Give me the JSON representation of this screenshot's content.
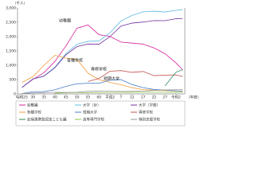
{
  "chart_data": {
    "type": "line",
    "y_unit": "（千人）",
    "x_label": "（年度）",
    "x": [
      1950,
      1955,
      1960,
      1965,
      1970,
      1975,
      1980,
      1985,
      1990,
      1995,
      2000,
      2005,
      2010,
      2015,
      2020,
      2023
    ],
    "xlim": [
      1948,
      2024
    ],
    "xticks": [
      {
        "value": 1950,
        "label": "昭和25"
      },
      {
        "value": 1955,
        "label": "30"
      },
      {
        "value": 1960,
        "label": "35"
      },
      {
        "value": 1965,
        "label": "40"
      },
      {
        "value": 1970,
        "label": "45"
      },
      {
        "value": 1975,
        "label": "50"
      },
      {
        "value": 1980,
        "label": "55"
      },
      {
        "value": 1985,
        "label": "60"
      },
      {
        "value": 1990,
        "label": "平成2"
      },
      {
        "value": 1995,
        "label": "7"
      },
      {
        "value": 2000,
        "label": "12"
      },
      {
        "value": 2005,
        "label": "17"
      },
      {
        "value": 2010,
        "label": "22"
      },
      {
        "value": 2015,
        "label": "27"
      },
      {
        "value": 2020,
        "label": "令和2"
      }
    ],
    "ylim": [
      0,
      3000
    ],
    "yticks": [
      0,
      500,
      {
        "value": 1000,
        "label": "1,000"
      },
      {
        "value": 1500,
        "label": "1,500"
      },
      {
        "value": 2000,
        "label": "2,000"
      },
      {
        "value": 2500,
        "label": "2,500"
      },
      {
        "value": 3000,
        "label": "3,000"
      }
    ],
    "grid": false,
    "series": [
      {
        "name": "幼稚園",
        "color": "#d4219b",
        "values": [
          225,
          509,
          742,
          1137,
          1675,
          2293,
          2407,
          2067,
          2008,
          1808,
          1773,
          1738,
          1605,
          1403,
          1079,
          841
        ]
      },
      {
        "name": "大学（計）",
        "color": "#5fb8e0",
        "values": [
          225,
          523,
          626,
          938,
          1407,
          1734,
          1835,
          1849,
          2133,
          2547,
          2740,
          2865,
          2887,
          2860,
          2916,
          2946
        ]
      },
      {
        "name": "大学（学部）",
        "color": "#7030a0",
        "values": [
          225,
          521,
          617,
          916,
          1366,
          1652,
          1741,
          1734,
          2000,
          2369,
          2471,
          2508,
          2560,
          2556,
          2624,
          2632
        ]
      },
      {
        "name": "各種学校",
        "color": "#f39c3c",
        "values": [
          400,
          600,
          1000,
          1350,
          1250,
          1200,
          725,
          500,
          400,
          320,
          220,
          150,
          130,
          120,
          103,
          100
        ]
      },
      {
        "name": "短期大学",
        "color": "#4a7ec8",
        "values": [
          15,
          77,
          83,
          147,
          263,
          353,
          371,
          371,
          479,
          498,
          328,
          219,
          155,
          132,
          107,
          86
        ]
      },
      {
        "name": "専修学校",
        "color": "#c0504d",
        "values": [
          null,
          null,
          null,
          null,
          null,
          null,
          433,
          538,
          791,
          814,
          751,
          783,
          637,
          656,
          662,
          607
        ]
      },
      {
        "name": "幼保連携型認定こども園",
        "color": "#2e8b57",
        "values": [
          null,
          null,
          null,
          null,
          null,
          null,
          null,
          null,
          null,
          null,
          null,
          null,
          null,
          281,
          759,
          843
        ]
      },
      {
        "name": "高等専門学校",
        "color": "#8bc34a",
        "values": [
          null,
          null,
          null,
          22,
          44,
          48,
          46,
          48,
          53,
          56,
          57,
          59,
          59,
          58,
          57,
          57
        ]
      },
      {
        "name": "特別支援学校",
        "color": "#999999",
        "values": [
          12,
          30,
          47,
          60,
          50,
          59,
          92,
          95,
          93,
          87,
          90,
          101,
          121,
          138,
          145,
          151
        ]
      }
    ],
    "annotations": [
      "幼稚園",
      "各種学校",
      "専修学校",
      "短期大学"
    ]
  }
}
